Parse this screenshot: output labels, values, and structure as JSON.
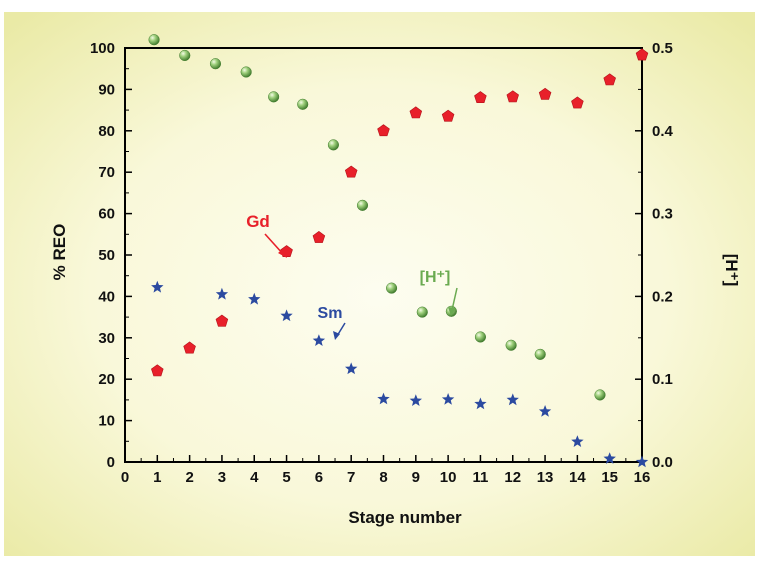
{
  "chart_data": {
    "type": "scatter",
    "xlabel": "Stage number",
    "ylabel": "% REO",
    "ylabel_right": "[H⁺]",
    "xlim": [
      0,
      16
    ],
    "ylim": [
      0,
      100
    ],
    "ylim_right": [
      0,
      0.5
    ],
    "x_ticks": [
      "0",
      "1",
      "2",
      "3",
      "4",
      "5",
      "6",
      "7",
      "8",
      "9",
      "10",
      "11",
      "12",
      "13",
      "14",
      "15",
      "16"
    ],
    "y_ticks": [
      "0",
      "10",
      "20",
      "30",
      "40",
      "50",
      "60",
      "70",
      "80",
      "90",
      "100"
    ],
    "y_right_ticks": [
      "0.0",
      "0.1",
      "0.2",
      "0.3",
      "0.4",
      "0.5"
    ],
    "grid": false,
    "legend": "none",
    "series": [
      {
        "name": "Gd",
        "axis": "left",
        "marker": "pentagon",
        "color": "#e8202a",
        "points": [
          [
            1,
            22
          ],
          [
            2,
            27.5
          ],
          [
            3,
            34
          ],
          [
            5,
            50.8
          ],
          [
            6,
            54.2
          ],
          [
            7,
            70
          ],
          [
            8,
            80
          ],
          [
            9,
            84.3
          ],
          [
            10,
            83.5
          ],
          [
            11,
            88
          ],
          [
            12,
            88.2
          ],
          [
            13,
            88.8
          ],
          [
            14,
            86.7
          ],
          [
            15,
            92.3
          ],
          [
            16,
            98.3
          ]
        ]
      },
      {
        "name": "Sm",
        "axis": "left",
        "marker": "star",
        "color": "#2b4aa0",
        "points": [
          [
            1,
            42.2
          ],
          [
            3,
            40.5
          ],
          [
            4,
            39.3
          ],
          [
            5,
            35.3
          ],
          [
            6,
            29.3
          ],
          [
            7,
            22.5
          ],
          [
            8,
            15.2
          ],
          [
            9,
            14.8
          ],
          [
            10,
            15.1
          ],
          [
            11,
            14
          ],
          [
            12,
            15
          ],
          [
            13,
            12.2
          ],
          [
            14,
            4.9
          ],
          [
            15,
            0.8
          ],
          [
            16,
            0
          ]
        ]
      },
      {
        "name": "[H⁺]",
        "axis": "right",
        "marker": "sphere",
        "color": "#6aaa50",
        "points": [
          [
            0.9,
            0.51
          ],
          [
            1.85,
            0.491
          ],
          [
            2.8,
            0.481
          ],
          [
            3.75,
            0.471
          ],
          [
            4.6,
            0.441
          ],
          [
            5.5,
            0.432
          ],
          [
            6.45,
            0.383
          ],
          [
            7.35,
            0.31
          ],
          [
            8.25,
            0.21
          ],
          [
            9.2,
            0.181
          ],
          [
            10.1,
            0.182
          ],
          [
            11,
            0.151
          ],
          [
            11.95,
            0.141
          ],
          [
            12.85,
            0.13
          ],
          [
            14.7,
            0.081
          ]
        ]
      }
    ],
    "annotations": [
      {
        "text": "Gd",
        "color": "#e8202a"
      },
      {
        "text": "Sm",
        "color": "#2b4aa0"
      },
      {
        "text": "[H⁺]",
        "color": "#6aaa50"
      }
    ]
  }
}
